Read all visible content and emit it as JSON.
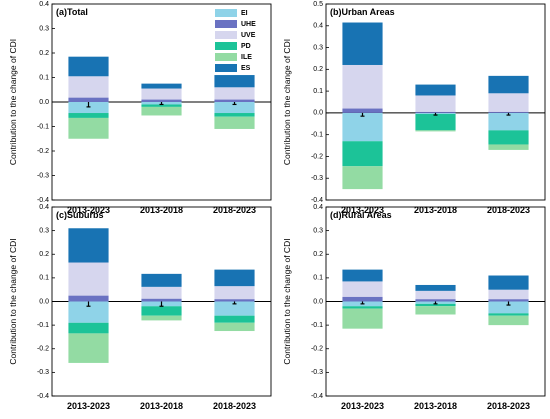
{
  "ylabel": "Contribution to the change of CDI",
  "legend": [
    {
      "name": "EI",
      "color": "#8FD3E8"
    },
    {
      "name": "UHE",
      "color": "#6A72C2"
    },
    {
      "name": "UVE",
      "color": "#D6D6EE"
    },
    {
      "name": "PD",
      "color": "#1CC398"
    },
    {
      "name": "ILE",
      "color": "#93DBA3"
    },
    {
      "name": "ES",
      "color": "#1873B3"
    }
  ],
  "chart_data": [
    {
      "type": "bar",
      "stacked": true,
      "title": "(a)Total",
      "categories": [
        "2013-2023",
        "2013-2018",
        "2018-2023"
      ],
      "ylim": [
        -0.4,
        0.4
      ],
      "yticks": [
        "0.4",
        "0.3",
        "0.2",
        "0.1",
        "0.0",
        "-0.1",
        "-0.2",
        "-0.3",
        "-0.4"
      ],
      "legend_position": "top-right",
      "series": [
        {
          "name": "EI",
          "values": [
            -0.045,
            -0.01,
            -0.045
          ]
        },
        {
          "name": "UHE",
          "values": [
            0.018,
            0.01,
            0.01
          ]
        },
        {
          "name": "UVE",
          "values": [
            0.087,
            0.045,
            0.05
          ]
        },
        {
          "name": "PD",
          "values": [
            -0.02,
            -0.01,
            -0.015
          ]
        },
        {
          "name": "ILE",
          "values": [
            -0.085,
            -0.035,
            -0.05
          ]
        },
        {
          "name": "ES",
          "values": [
            0.08,
            0.02,
            0.05
          ]
        }
      ],
      "net": [
        -0.02,
        -0.01,
        -0.01
      ]
    },
    {
      "type": "bar",
      "stacked": true,
      "title": "(b)Urban Areas",
      "categories": [
        "2013-2023",
        "2013-2018",
        "2018-2023"
      ],
      "ylim": [
        -0.4,
        0.5
      ],
      "yticks": [
        "0.5",
        "0.4",
        "0.3",
        "0.2",
        "0.1",
        "0.0",
        "-0.1",
        "-0.2",
        "-0.3",
        "-0.4"
      ],
      "series": [
        {
          "name": "EI",
          "values": [
            -0.13,
            -0.005,
            -0.08
          ]
        },
        {
          "name": "UHE",
          "values": [
            0.02,
            0.005,
            0.005
          ]
        },
        {
          "name": "UVE",
          "values": [
            0.2,
            0.075,
            0.085
          ]
        },
        {
          "name": "PD",
          "values": [
            -0.115,
            -0.075,
            -0.065
          ]
        },
        {
          "name": "ILE",
          "values": [
            -0.105,
            -0.005,
            -0.025
          ]
        },
        {
          "name": "ES",
          "values": [
            0.195,
            0.05,
            0.08
          ]
        }
      ],
      "net": [
        -0.015,
        -0.01,
        -0.01
      ]
    },
    {
      "type": "bar",
      "stacked": true,
      "title": "(c)Suburbs",
      "categories": [
        "2013-2023",
        "2013-2018",
        "2018-2023"
      ],
      "ylim": [
        -0.4,
        0.4
      ],
      "yticks": [
        "0.4",
        "0.3",
        "0.2",
        "0.1",
        "0.0",
        "-0.1",
        "-0.2",
        "-0.3",
        "-0.4"
      ],
      "series": [
        {
          "name": "EI",
          "values": [
            -0.09,
            -0.02,
            -0.06
          ]
        },
        {
          "name": "UHE",
          "values": [
            0.025,
            0.012,
            0.01
          ]
        },
        {
          "name": "UVE",
          "values": [
            0.14,
            0.05,
            0.055
          ]
        },
        {
          "name": "PD",
          "values": [
            -0.045,
            -0.04,
            -0.03
          ]
        },
        {
          "name": "ILE",
          "values": [
            -0.125,
            -0.02,
            -0.035
          ]
        },
        {
          "name": "ES",
          "values": [
            0.145,
            0.055,
            0.07
          ]
        }
      ],
      "net": [
        -0.02,
        -0.02,
        -0.01
      ]
    },
    {
      "type": "bar",
      "stacked": true,
      "title": "(d)Rural Areas",
      "categories": [
        "2013-2023",
        "2013-2018",
        "2018-2023"
      ],
      "ylim": [
        -0.4,
        0.4
      ],
      "yticks": [
        "0.4",
        "0.3",
        "0.2",
        "0.1",
        "0.0",
        "-0.1",
        "-0.2",
        "-0.3",
        "-0.4"
      ],
      "series": [
        {
          "name": "EI",
          "values": [
            -0.02,
            -0.01,
            -0.05
          ]
        },
        {
          "name": "UHE",
          "values": [
            0.02,
            0.01,
            0.01
          ]
        },
        {
          "name": "UVE",
          "values": [
            0.065,
            0.035,
            0.04
          ]
        },
        {
          "name": "PD",
          "values": [
            -0.01,
            -0.01,
            -0.01
          ]
        },
        {
          "name": "ILE",
          "values": [
            -0.085,
            -0.035,
            -0.04
          ]
        },
        {
          "name": "ES",
          "values": [
            0.05,
            0.025,
            0.06
          ]
        }
      ],
      "net": [
        -0.01,
        -0.01,
        -0.015
      ]
    }
  ]
}
